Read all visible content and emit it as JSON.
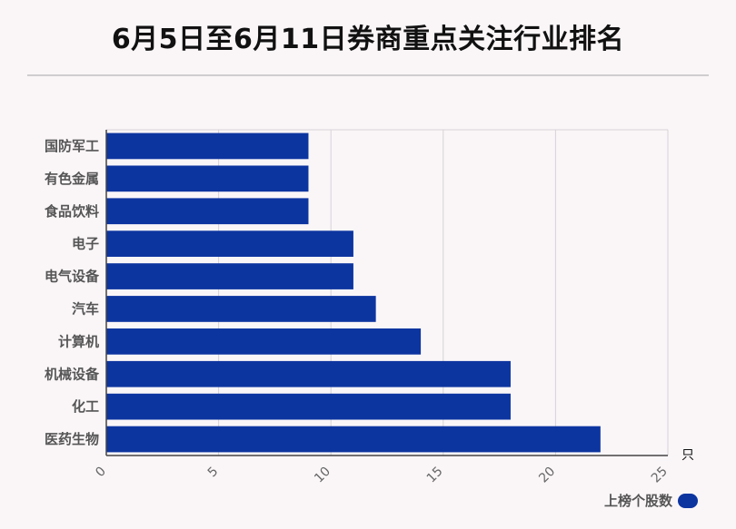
{
  "title": "6月5日至6月11日券商重点关注行业排名",
  "chart_data": {
    "type": "bar",
    "orientation": "horizontal",
    "title": "6月5日至6月11日券商重点关注行业排名",
    "categories": [
      "国防军工",
      "有色金属",
      "食品饮料",
      "电子",
      "电气设备",
      "汽车",
      "计算机",
      "机械设备",
      "化工",
      "医药生物"
    ],
    "series": [
      {
        "name": "上榜个股数",
        "values": [
          9,
          9,
          9,
          11,
          11,
          12,
          14,
          18,
          18,
          22
        ]
      }
    ],
    "xlim": [
      0,
      25
    ],
    "xticks": [
      "0",
      "5",
      "10",
      "15",
      "20",
      "25"
    ],
    "xunit": "只",
    "grid": true,
    "legend_position": "bottom-right",
    "bar_color": "#0d35a0"
  },
  "legend": {
    "label": "上榜个股数"
  }
}
